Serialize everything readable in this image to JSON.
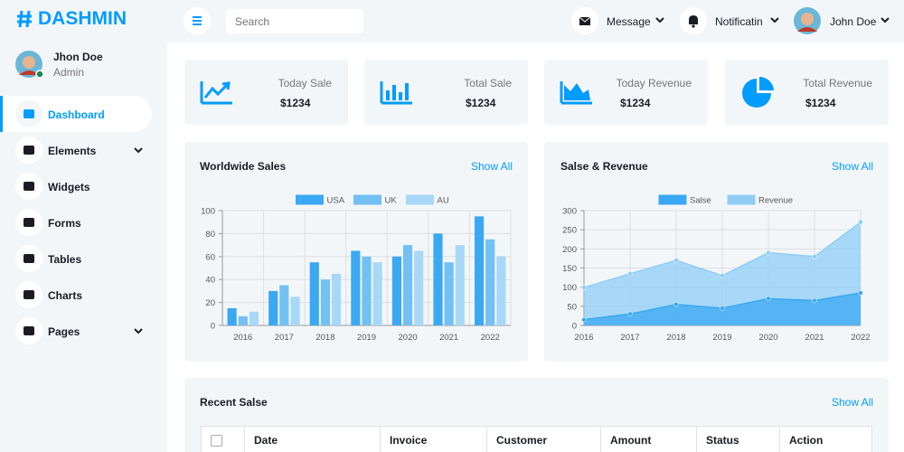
{
  "brand": "DASHMIN",
  "user": {
    "name": "Jhon Doe",
    "role": "Admin"
  },
  "nav": [
    {
      "label": "Dashboard",
      "active": true,
      "dropdown": false
    },
    {
      "label": "Elements",
      "active": false,
      "dropdown": true
    },
    {
      "label": "Widgets",
      "active": false,
      "dropdown": false
    },
    {
      "label": "Forms",
      "active": false,
      "dropdown": false
    },
    {
      "label": "Tables",
      "active": false,
      "dropdown": false
    },
    {
      "label": "Charts",
      "active": false,
      "dropdown": false
    },
    {
      "label": "Pages",
      "active": false,
      "dropdown": true
    }
  ],
  "topbar": {
    "search_placeholder": "Search",
    "message": "Message",
    "notification": "Notificatin",
    "user": "John Doe"
  },
  "stats": [
    {
      "label": "Today Sale",
      "value": "$1234"
    },
    {
      "label": "Total Sale",
      "value": "$1234"
    },
    {
      "label": "Today Revenue",
      "value": "$1234"
    },
    {
      "label": "Total Revenue",
      "value": "$1234"
    }
  ],
  "chart_data": [
    {
      "type": "bar",
      "title": "Worldwide Sales",
      "link": "Show All",
      "categories": [
        "2016",
        "2017",
        "2018",
        "2019",
        "2020",
        "2021",
        "2022"
      ],
      "series": [
        {
          "name": "USA",
          "color": "#3aa8f2",
          "values": [
            15,
            30,
            55,
            65,
            60,
            80,
            95
          ]
        },
        {
          "name": "UK",
          "color": "#72c0f4",
          "values": [
            8,
            35,
            40,
            60,
            70,
            55,
            75
          ]
        },
        {
          "name": "AU",
          "color": "#a8d8f8",
          "values": [
            12,
            25,
            45,
            55,
            65,
            70,
            60
          ]
        }
      ],
      "ylim": [
        0,
        100
      ],
      "yticks": [
        0,
        20,
        40,
        60,
        80,
        100
      ],
      "grid": true
    },
    {
      "type": "area",
      "title": "Salse & Revenue",
      "link": "Show All",
      "categories": [
        "2016",
        "2017",
        "2018",
        "2019",
        "2020",
        "2021",
        "2022"
      ],
      "series": [
        {
          "name": "Salse",
          "color": "#3aa8f2",
          "values": [
            15,
            30,
            55,
            45,
            70,
            65,
            85
          ]
        },
        {
          "name": "Revenue",
          "color": "#8fcdf6",
          "values": [
            99,
            135,
            170,
            130,
            190,
            180,
            270
          ]
        }
      ],
      "ylim": [
        0,
        300
      ],
      "yticks": [
        0,
        50,
        100,
        150,
        200,
        250,
        300
      ],
      "grid": true
    }
  ],
  "table": {
    "title": "Recent Salse",
    "link": "Show All",
    "headers": [
      "Date",
      "Invoice",
      "Customer",
      "Amount",
      "Status",
      "Action"
    ]
  }
}
